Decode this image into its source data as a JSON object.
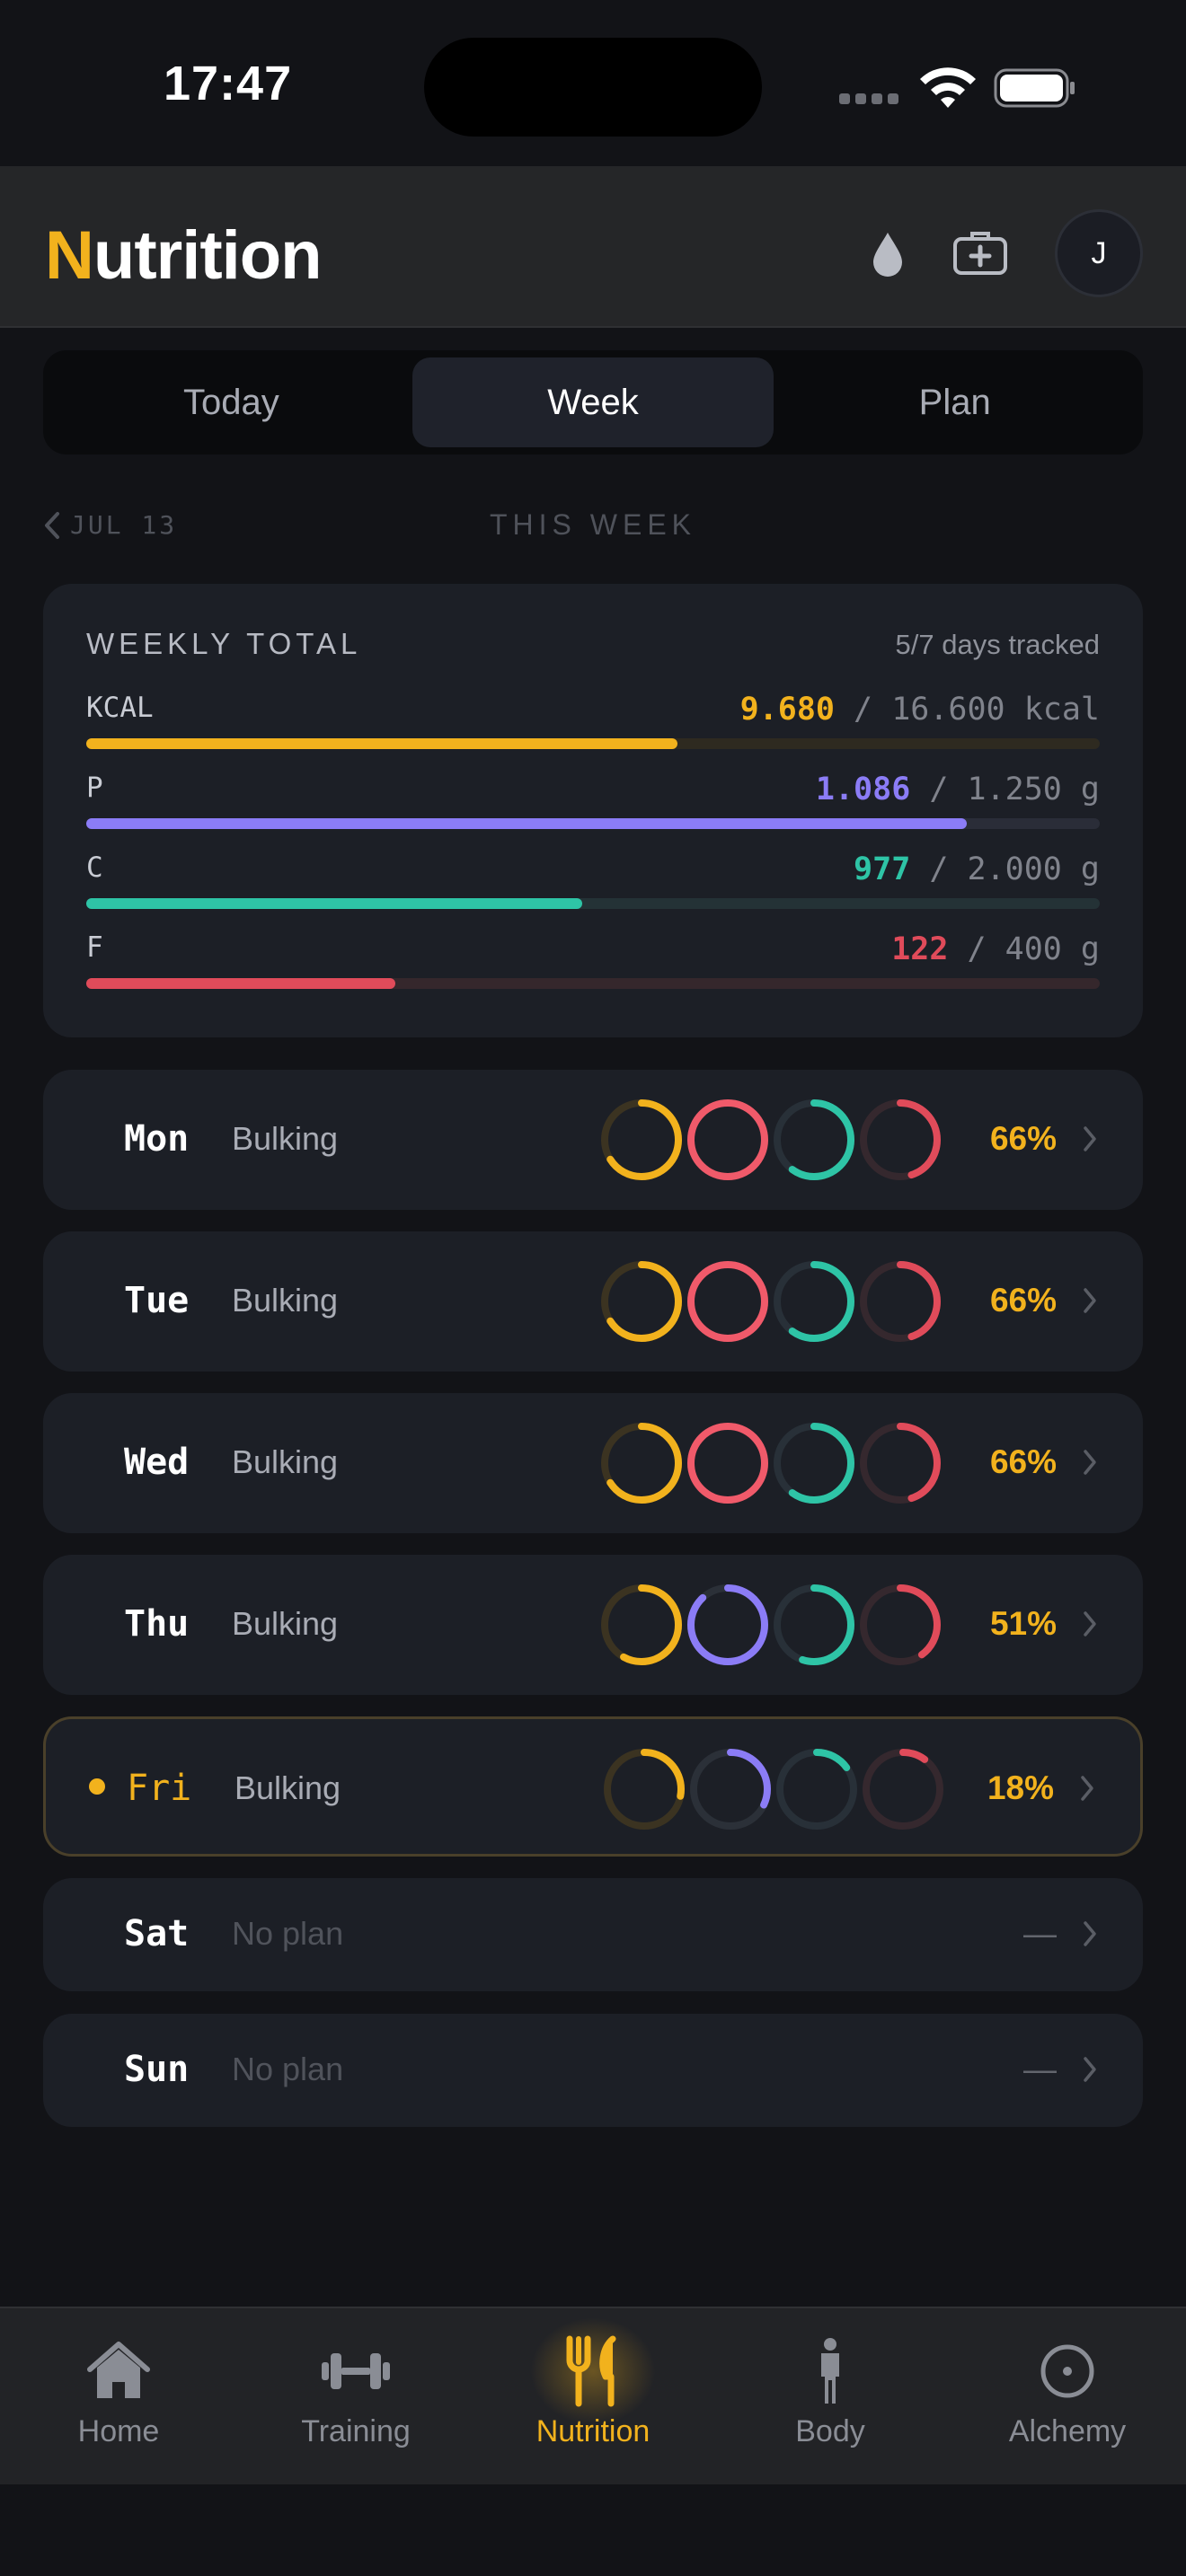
{
  "status_bar": {
    "time": "17:47"
  },
  "header": {
    "title_first": "N",
    "title_rest": "utrition",
    "avatar_initial": "J",
    "icons": [
      "water-drop-icon",
      "first-aid-kit-icon"
    ]
  },
  "tabs": [
    {
      "label": "Today",
      "active": false
    },
    {
      "label": "Week",
      "active": true
    },
    {
      "label": "Plan",
      "active": false
    }
  ],
  "week_nav": {
    "prev_label": "JUL 13",
    "current_label": "THIS WEEK"
  },
  "weekly_total": {
    "title": "WEEKLY TOTAL",
    "days_tracked": "5/7 days tracked",
    "macros": [
      {
        "label": "KCAL",
        "current": "9.680",
        "target": "16.600",
        "unit": "kcal",
        "fraction": 0.583,
        "color": "#f2b21d",
        "track": "#2e2a20"
      },
      {
        "label": "P",
        "current": "1.086",
        "target": "1.250",
        "unit": "g",
        "fraction": 0.869,
        "color": "#8b7cf6",
        "track": "#2a2d38"
      },
      {
        "label": "C",
        "current": "977",
        "target": "2.000",
        "unit": "g",
        "fraction": 0.489,
        "color": "#2ec4a6",
        "track": "#243236"
      },
      {
        "label": "F",
        "current": "122",
        "target": "400",
        "unit": "g",
        "fraction": 0.305,
        "color": "#e04b5a",
        "track": "#35272c"
      }
    ]
  },
  "days": [
    {
      "name": "Mon",
      "plan": "Bulking",
      "pct": "66%",
      "today": false,
      "rings": [
        0.66,
        1.0,
        0.6,
        0.45
      ]
    },
    {
      "name": "Tue",
      "plan": "Bulking",
      "pct": "66%",
      "today": false,
      "rings": [
        0.66,
        1.0,
        0.6,
        0.45
      ]
    },
    {
      "name": "Wed",
      "plan": "Bulking",
      "pct": "66%",
      "today": false,
      "rings": [
        0.66,
        1.0,
        0.6,
        0.45
      ]
    },
    {
      "name": "Thu",
      "plan": "Bulking",
      "pct": "51%",
      "today": false,
      "rings": [
        0.58,
        0.88,
        0.55,
        0.4
      ]
    },
    {
      "name": "Fri",
      "plan": "Bulking",
      "pct": "18%",
      "today": true,
      "rings": [
        0.28,
        0.32,
        0.15,
        0.1
      ]
    },
    {
      "name": "Sat",
      "plan": "No plan",
      "pct": "—",
      "today": false,
      "rings": null
    },
    {
      "name": "Sun",
      "plan": "No plan",
      "pct": "—",
      "today": false,
      "rings": null
    }
  ],
  "ring_colors": {
    "kcal": {
      "fill": "#f2b21d",
      "track": "#3b3321"
    },
    "protein_full": {
      "fill": "#f05a6a",
      "track": "#3a2a30"
    },
    "protein": {
      "fill": "#8b7cf6",
      "track": "#2b3038"
    },
    "carbs": {
      "fill": "#2ec4a6",
      "track": "#283038"
    },
    "fat": {
      "fill": "#e04b5a",
      "track": "#35282e"
    }
  },
  "bottom_nav": [
    {
      "label": "Home",
      "icon": "home-icon",
      "active": false
    },
    {
      "label": "Training",
      "icon": "dumbbell-icon",
      "active": false
    },
    {
      "label": "Nutrition",
      "icon": "fork-knife-icon",
      "active": true
    },
    {
      "label": "Body",
      "icon": "person-icon",
      "active": false
    },
    {
      "label": "Alchemy",
      "icon": "target-icon",
      "active": false
    }
  ]
}
